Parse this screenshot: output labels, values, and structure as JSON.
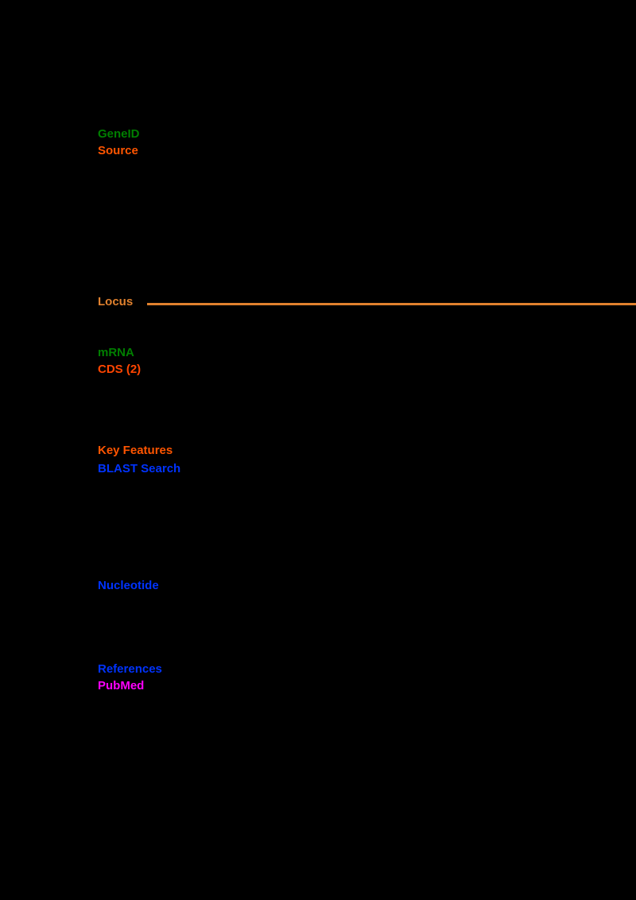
{
  "page": {
    "background_color": "#000000"
  },
  "document": {
    "elements": [
      {
        "name": "gene-link",
        "text": "GeneID",
        "color": "#007f00"
      },
      {
        "name": "source-link",
        "text": "Source",
        "color": "#ff5500"
      },
      {
        "name": "locus-link",
        "text": "Locus",
        "color": "#e0812e"
      },
      {
        "name": "mrna-link",
        "text": "mRNA",
        "color": "#007f00"
      },
      {
        "name": "cds-link",
        "text": "CDS (2)",
        "color": "#ff4500"
      },
      {
        "name": "features-link",
        "text": "Key Features",
        "color": "#ff5500"
      },
      {
        "name": "blast-link",
        "text": "BLAST Search",
        "color": "#0033ff"
      },
      {
        "name": "nucleotide-link",
        "text": "Nucleotide",
        "color": "#0033ff"
      },
      {
        "name": "references-link",
        "text": "References",
        "color": "#0033ff"
      },
      {
        "name": "pubmed-link",
        "text": "PubMed",
        "color": "#ff00ff"
      }
    ],
    "separator": {
      "color": "#e0812e"
    }
  }
}
